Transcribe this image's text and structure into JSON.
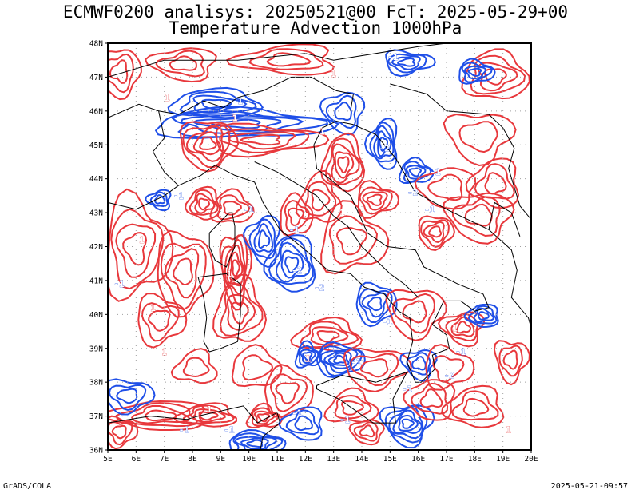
{
  "title_line1": "ECMWF0200 analisys: 20250521@00 FcT: 2025-05-29+00",
  "title_line2": "Temperature Advection 1000hPa",
  "footer_left": "GrADS/COLA",
  "footer_right": "2025-05-21-09:57",
  "map": {
    "lon_labels": [
      "5E",
      "6E",
      "7E",
      "8E",
      "9E",
      "10E",
      "11E",
      "12E",
      "13E",
      "14E",
      "15E",
      "16E",
      "17E",
      "18E",
      "19E",
      "20E"
    ],
    "lat_labels": [
      "48N",
      "47N",
      "46N",
      "45N",
      "44N",
      "43N",
      "42N",
      "41N",
      "40N",
      "39N",
      "38N",
      "37N",
      "36N"
    ],
    "lon_range": [
      5,
      20
    ],
    "lat_range": [
      36,
      48
    ],
    "grid": true,
    "colors": {
      "warm_advection": "#e8383c",
      "cold_advection": "#1f4fe8",
      "coastline": "#000000",
      "grid": "#a0a0a0"
    },
    "contour_labels": [
      {
        "text": "-1",
        "lon": 15.1,
        "lat": 47.6,
        "sign": "neg"
      },
      {
        "text": "1",
        "lon": 13.0,
        "lat": 47.1,
        "sign": "pos"
      },
      {
        "text": "1",
        "lon": 7.1,
        "lat": 46.4,
        "sign": "pos"
      },
      {
        "text": "-1",
        "lon": 9.6,
        "lat": 46.3,
        "sign": "neg"
      },
      {
        "text": "1",
        "lon": 9.5,
        "lat": 45.8,
        "sign": "pos"
      },
      {
        "text": "1",
        "lon": 12.6,
        "lat": 45.4,
        "sign": "pos"
      },
      {
        "text": "-2",
        "lon": 14.8,
        "lat": 44.9,
        "sign": "neg"
      },
      {
        "text": "-1",
        "lon": 16.6,
        "lat": 44.2,
        "sign": "neg"
      },
      {
        "text": "-1",
        "lon": 7.5,
        "lat": 43.5,
        "sign": "neg"
      },
      {
        "text": "-2",
        "lon": 15.8,
        "lat": 43.6,
        "sign": "neg"
      },
      {
        "text": "-1",
        "lon": 16.4,
        "lat": 43.1,
        "sign": "neg"
      },
      {
        "text": "-1",
        "lon": 10.0,
        "lat": 43.1,
        "sign": "neg"
      },
      {
        "text": "1",
        "lon": 13.3,
        "lat": 43.0,
        "sign": "pos"
      },
      {
        "text": "1",
        "lon": 6.2,
        "lat": 42.2,
        "sign": "pos"
      },
      {
        "text": "-1",
        "lon": 11.6,
        "lat": 42.5,
        "sign": "neg"
      },
      {
        "text": "-2",
        "lon": 11.7,
        "lat": 41.3,
        "sign": "neg"
      },
      {
        "text": "-1",
        "lon": 5.4,
        "lat": 40.9,
        "sign": "neg"
      },
      {
        "text": "1",
        "lon": 9.3,
        "lat": 41.2,
        "sign": "pos"
      },
      {
        "text": "-2",
        "lon": 12.5,
        "lat": 40.8,
        "sign": "neg"
      },
      {
        "text": "1",
        "lon": 6.6,
        "lat": 40.2,
        "sign": "pos"
      },
      {
        "text": "-1",
        "lon": 14.9,
        "lat": 39.8,
        "sign": "neg"
      },
      {
        "text": "1",
        "lon": 17.3,
        "lat": 39.6,
        "sign": "pos"
      },
      {
        "text": "-1",
        "lon": 17.5,
        "lat": 38.9,
        "sign": "neg"
      },
      {
        "text": "1",
        "lon": 7.0,
        "lat": 38.9,
        "sign": "pos"
      },
      {
        "text": "1",
        "lon": 12.1,
        "lat": 38.7,
        "sign": "pos"
      },
      {
        "text": "-1",
        "lon": 13.8,
        "lat": 38.6,
        "sign": "neg"
      },
      {
        "text": "-2",
        "lon": 17.1,
        "lat": 38.2,
        "sign": "neg"
      },
      {
        "text": "-1",
        "lon": 15.6,
        "lat": 37.8,
        "sign": "neg"
      },
      {
        "text": "1",
        "lon": 8.6,
        "lat": 37.2,
        "sign": "pos"
      },
      {
        "text": "-1",
        "lon": 11.7,
        "lat": 37.1,
        "sign": "neg"
      },
      {
        "text": "-1",
        "lon": 13.4,
        "lat": 36.9,
        "sign": "neg"
      },
      {
        "text": "1",
        "lon": 19.2,
        "lat": 36.6,
        "sign": "pos"
      },
      {
        "text": "-1",
        "lon": 7.7,
        "lat": 36.6,
        "sign": "neg"
      },
      {
        "text": "-1",
        "lon": 9.3,
        "lat": 36.6,
        "sign": "neg"
      }
    ]
  }
}
